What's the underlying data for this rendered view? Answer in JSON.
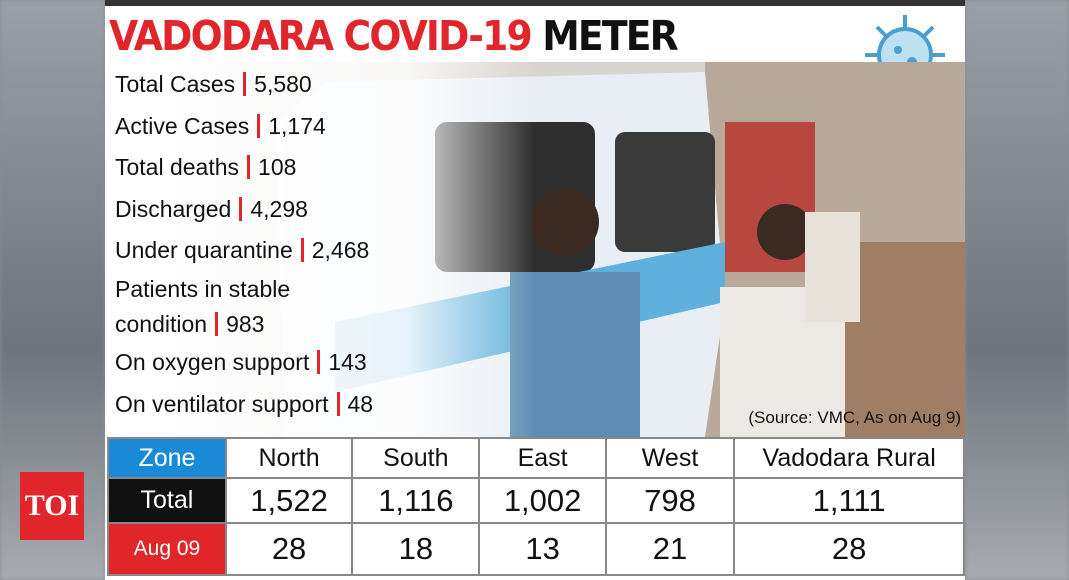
{
  "logo": "TOI",
  "header": {
    "title_red": "VADODARA COVID-19",
    "title_black": "METER"
  },
  "stats": [
    {
      "label": "Total Cases",
      "value": "5,580"
    },
    {
      "label": "Active Cases",
      "value": "1,174"
    },
    {
      "label": "Total deaths",
      "value": "108"
    },
    {
      "label": "Discharged",
      "value": "4,298"
    },
    {
      "label": "Under quarantine",
      "value": "2,468"
    },
    {
      "label": "Patients in stable condition",
      "value": "983"
    },
    {
      "label": "On oxygen support",
      "value": "143"
    },
    {
      "label": "On ventilator support",
      "value": "48"
    }
  ],
  "source": "(Source: VMC, As on Aug 9)",
  "table": {
    "header": [
      "Zone",
      "North",
      "South",
      "East",
      "West",
      "Vadodara Rural"
    ],
    "rows": [
      [
        "Total",
        "1,522",
        "1,116",
        "1,002",
        "798",
        "1,111"
      ],
      [
        "Aug 09",
        "28",
        "18",
        "13",
        "21",
        "28"
      ]
    ]
  }
}
